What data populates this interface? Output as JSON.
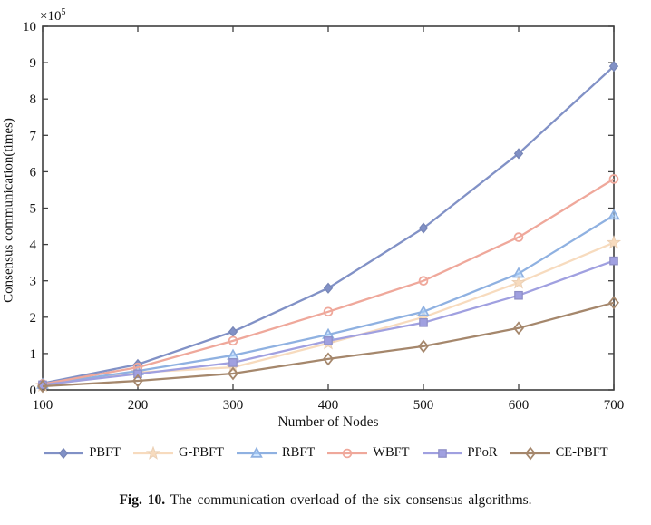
{
  "figure": {
    "exponent_prefix": "×10",
    "exponent_power": "5",
    "ylabel": "Consensus communication(times)",
    "xlabel": "Number of Nodes",
    "caption_bold": "Fig. 10.",
    "caption_text": " The communication overload of the six consensus algorithms."
  },
  "chart_data": {
    "type": "line",
    "title": "",
    "xlabel": "Number of Nodes",
    "ylabel": "Consensus communication(times)",
    "x": [
      100,
      200,
      300,
      400,
      500,
      600,
      700
    ],
    "x_tick_labels": [
      "100",
      "200",
      "300",
      "400",
      "500",
      "600",
      "700"
    ],
    "y_tick_labels": [
      "0",
      "1",
      "2",
      "3",
      "4",
      "5",
      "6",
      "7",
      "8",
      "9",
      "10"
    ],
    "y_tick_values": [
      0,
      100000,
      200000,
      300000,
      400000,
      500000,
      600000,
      700000,
      800000,
      900000,
      1000000
    ],
    "y_scale_label": "×10^5",
    "xlim": [
      100,
      700
    ],
    "ylim": [
      0,
      1000000
    ],
    "grid": false,
    "legend_position": "below-chart",
    "axis_color": "#3f3f3f",
    "series": [
      {
        "name": "PBFT",
        "color": "#8191c6",
        "marker": "diamond-filled",
        "marker_icon": "diamond-marker-icon",
        "values": [
          18000,
          70000,
          160000,
          280000,
          445000,
          650000,
          890000
        ]
      },
      {
        "name": "G-PBFT",
        "color": "#f7dbbe",
        "marker": "star-filled",
        "marker_icon": "star-marker-icon",
        "values": [
          12000,
          48000,
          62000,
          128000,
          200000,
          295000,
          405000
        ]
      },
      {
        "name": "RBFT",
        "color": "#8fb1e1",
        "marker": "triangle-up",
        "marker_icon": "triangle-marker-icon",
        "values": [
          15000,
          52000,
          95000,
          152000,
          215000,
          320000,
          480000
        ]
      },
      {
        "name": "WBFT",
        "color": "#efa89b",
        "marker": "circle-open",
        "marker_icon": "circle-marker-icon",
        "values": [
          16000,
          62000,
          135000,
          215000,
          300000,
          420000,
          580000
        ]
      },
      {
        "name": "PPoR",
        "color": "#a0a0e0",
        "marker": "square-filled",
        "marker_icon": "square-marker-icon",
        "values": [
          14000,
          44000,
          75000,
          135000,
          185000,
          260000,
          355000
        ]
      },
      {
        "name": "CE-PBFT",
        "color": "#a5876c",
        "marker": "diamond-open",
        "marker_icon": "open-diamond-marker-icon",
        "values": [
          10000,
          25000,
          45000,
          85000,
          120000,
          170000,
          240000
        ]
      }
    ]
  }
}
